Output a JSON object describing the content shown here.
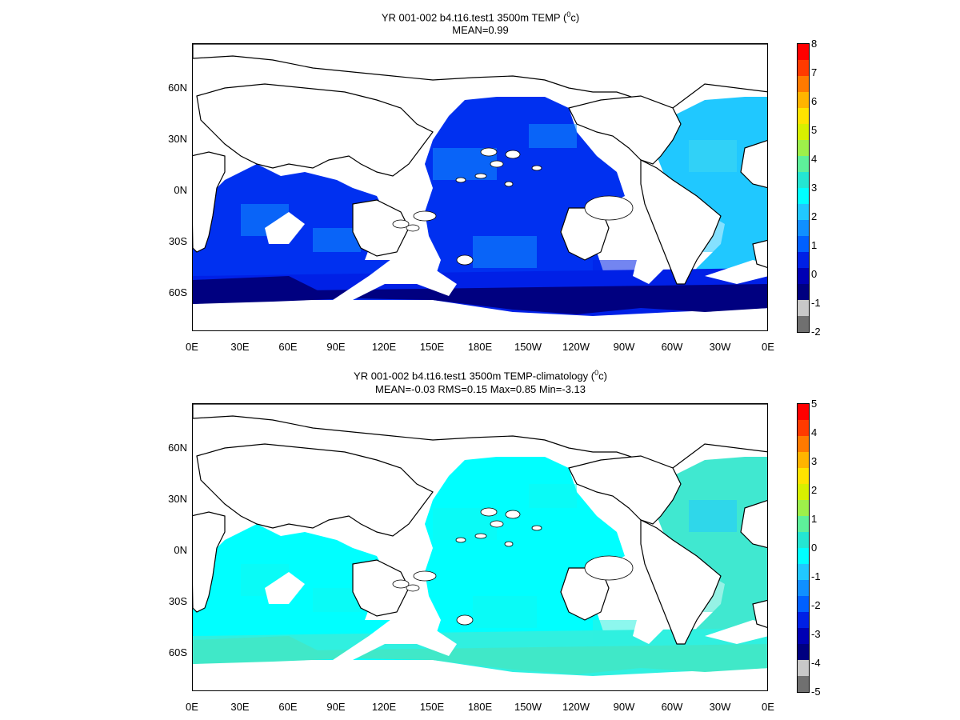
{
  "panels": [
    {
      "title_line1_prefix": "YR 001-002 b4.t16.test1 3500m TEMP (",
      "title_line1_sup": "0",
      "title_line1_suffix": "c)",
      "title_line2": "MEAN=0.99",
      "colorbar_labels": [
        "8",
        "7",
        "6",
        "5",
        "4",
        "3",
        "2",
        "1",
        "0",
        "-1",
        "-2"
      ],
      "colorbar_colors": [
        "#ff0000",
        "#ff3a00",
        "#ff7a00",
        "#ffb400",
        "#ffe400",
        "#d8f000",
        "#9ef04a",
        "#5ef09a",
        "#24e6d2",
        "#00ffff",
        "#20c8ff",
        "#1090ff",
        "#0060ff",
        "#0020e6",
        "#0000b4",
        "#000080",
        "#c8c8c8",
        "#707070"
      ],
      "ocean_palette": {
        "deep": "#000080",
        "mid": "#0020e6",
        "main": "#0030f0",
        "light": "#1090ff",
        "lighter": "#20c8ff",
        "pale": "#40d8f0"
      }
    },
    {
      "title_line1_prefix": "YR 001-002 b4.t16.test1 3500m TEMP-climatology (",
      "title_line1_sup": "0",
      "title_line1_suffix": "c)",
      "title_line2": "MEAN=-0.03   RMS=0.15   Max=0.85   Min=-3.13",
      "colorbar_labels": [
        "5",
        "4",
        "3",
        "2",
        "1",
        "0",
        "-1",
        "-2",
        "-3",
        "-4",
        "-5"
      ],
      "colorbar_colors": [
        "#ff0000",
        "#ff3a00",
        "#ff7a00",
        "#ffb400",
        "#ffe400",
        "#d8f000",
        "#9ef04a",
        "#5ef09a",
        "#24e6d2",
        "#00ffff",
        "#20c8ff",
        "#1090ff",
        "#0060ff",
        "#0020e6",
        "#0000b4",
        "#000080",
        "#c8c8c8",
        "#707070"
      ],
      "ocean_palette": {
        "deep": "#40e8c8",
        "mid": "#30f0e0",
        "main": "#00ffff",
        "light": "#10f8f0",
        "lighter": "#40e8d0",
        "pale": "#20c8ff"
      }
    }
  ],
  "x_ticks": [
    "0E",
    "30E",
    "60E",
    "90E",
    "120E",
    "150E",
    "180E",
    "150W",
    "120W",
    "90W",
    "60W",
    "30W",
    "0E"
  ],
  "y_ticks": [
    "60N",
    "30N",
    "0N",
    "30S",
    "60S"
  ]
}
